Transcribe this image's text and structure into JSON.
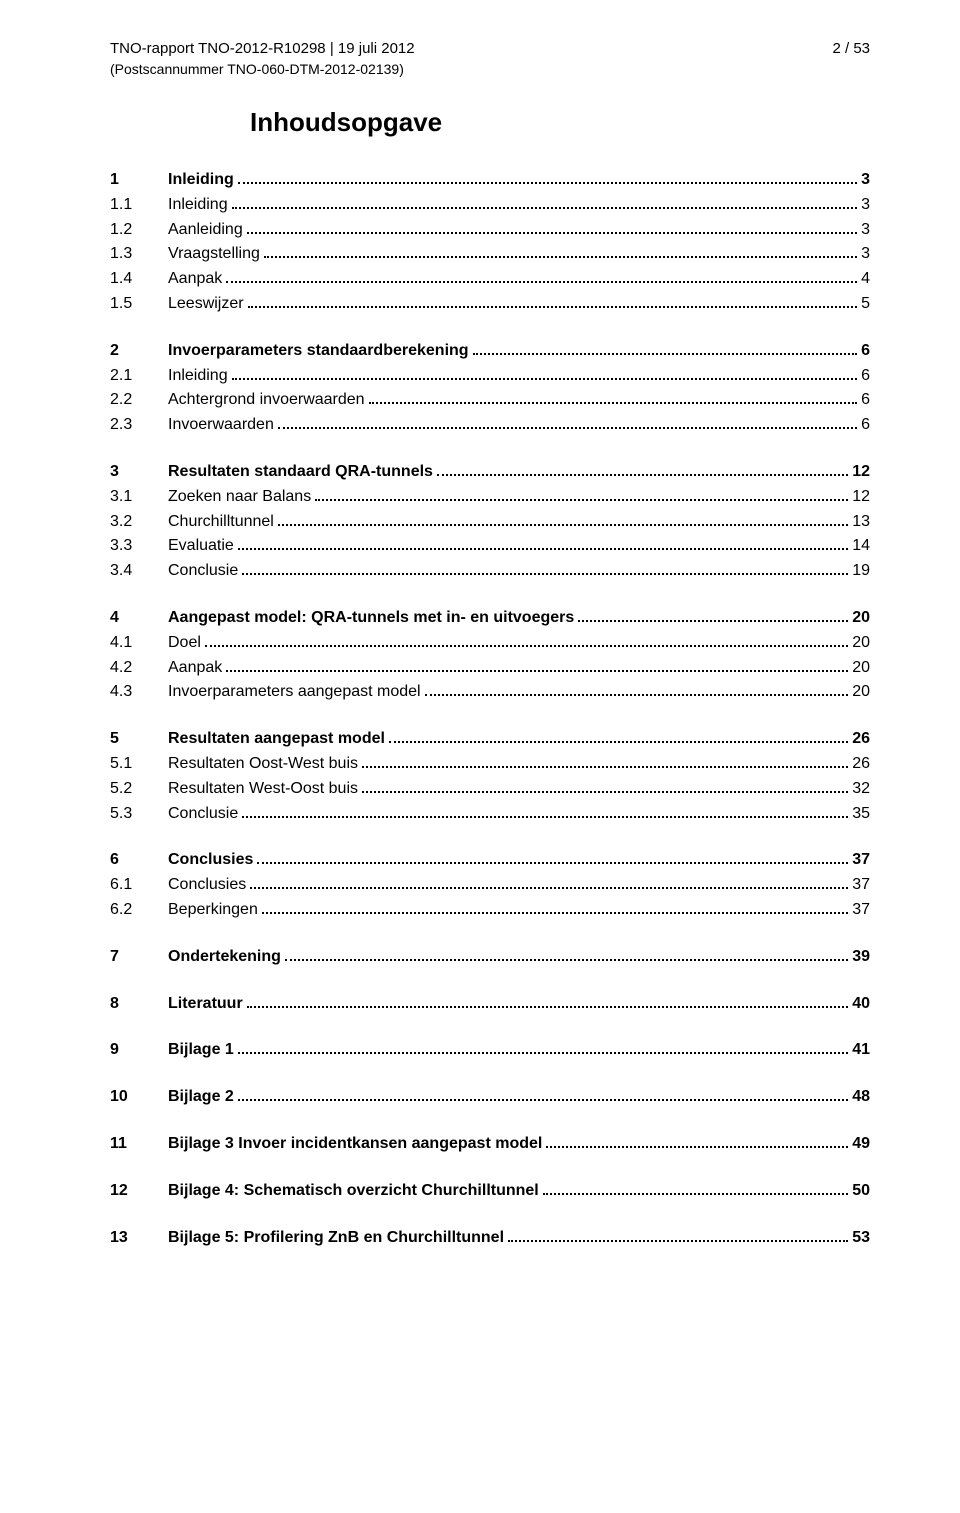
{
  "header": {
    "report_id": "TNO-rapport TNO-2012-R10298 | 19 juli 2012",
    "page_indicator": "2 / 53",
    "scan_number": "(Postscannummer TNO-060-DTM-2012-02139)"
  },
  "title": "Inhoudsopgave",
  "toc": [
    {
      "type": "section",
      "items": [
        {
          "num": "1",
          "label": "Inleiding",
          "page": "3",
          "bold": true
        },
        {
          "num": "1.1",
          "label": "Inleiding",
          "page": "3",
          "bold": false
        },
        {
          "num": "1.2",
          "label": "Aanleiding",
          "page": "3",
          "bold": false
        },
        {
          "num": "1.3",
          "label": "Vraagstelling",
          "page": "3",
          "bold": false
        },
        {
          "num": "1.4",
          "label": "Aanpak",
          "page": "4",
          "bold": false
        },
        {
          "num": "1.5",
          "label": "Leeswijzer",
          "page": "5",
          "bold": false
        }
      ]
    },
    {
      "type": "section",
      "items": [
        {
          "num": "2",
          "label": "Invoerparameters standaardberekening",
          "page": "6",
          "bold": true
        },
        {
          "num": "2.1",
          "label": "Inleiding",
          "page": "6",
          "bold": false
        },
        {
          "num": "2.2",
          "label": "Achtergrond invoerwaarden",
          "page": "6",
          "bold": false
        },
        {
          "num": "2.3",
          "label": "Invoerwaarden",
          "page": "6",
          "bold": false
        }
      ]
    },
    {
      "type": "section",
      "items": [
        {
          "num": "3",
          "label": "Resultaten standaard QRA-tunnels",
          "page": "12",
          "bold": true
        },
        {
          "num": "3.1",
          "label": "Zoeken naar Balans",
          "page": "12",
          "bold": false
        },
        {
          "num": "3.2",
          "label": "Churchilltunnel",
          "page": "13",
          "bold": false
        },
        {
          "num": "3.3",
          "label": "Evaluatie",
          "page": "14",
          "bold": false
        },
        {
          "num": "3.4",
          "label": "Conclusie",
          "page": "19",
          "bold": false
        }
      ]
    },
    {
      "type": "section",
      "items": [
        {
          "num": "4",
          "label": "Aangepast model: QRA-tunnels met in- en uitvoegers",
          "page": "20",
          "bold": true
        },
        {
          "num": "4.1",
          "label": "Doel",
          "page": "20",
          "bold": false
        },
        {
          "num": "4.2",
          "label": "Aanpak",
          "page": "20",
          "bold": false
        },
        {
          "num": "4.3",
          "label": "Invoerparameters aangepast model",
          "page": "20",
          "bold": false
        }
      ]
    },
    {
      "type": "section",
      "items": [
        {
          "num": "5",
          "label": "Resultaten aangepast model",
          "page": "26",
          "bold": true
        },
        {
          "num": "5.1",
          "label": "Resultaten Oost-West buis",
          "page": "26",
          "bold": false
        },
        {
          "num": "5.2",
          "label": "Resultaten West-Oost buis",
          "page": "32",
          "bold": false
        },
        {
          "num": "5.3",
          "label": "Conclusie",
          "page": "35",
          "bold": false
        }
      ]
    },
    {
      "type": "section",
      "items": [
        {
          "num": "6",
          "label": "Conclusies",
          "page": "37",
          "bold": true
        },
        {
          "num": "6.1",
          "label": "Conclusies",
          "page": "37",
          "bold": false
        },
        {
          "num": "6.2",
          "label": "Beperkingen",
          "page": "37",
          "bold": false
        }
      ]
    },
    {
      "type": "section",
      "items": [
        {
          "num": "7",
          "label": "Ondertekening",
          "page": "39",
          "bold": true
        }
      ]
    },
    {
      "type": "section",
      "items": [
        {
          "num": "8",
          "label": "Literatuur",
          "page": "40",
          "bold": true
        }
      ]
    },
    {
      "type": "section",
      "items": [
        {
          "num": "9",
          "label": "Bijlage 1",
          "page": "41",
          "bold": true
        }
      ]
    },
    {
      "type": "section",
      "items": [
        {
          "num": "10",
          "label": "Bijlage 2",
          "page": "48",
          "bold": true
        }
      ]
    },
    {
      "type": "section",
      "items": [
        {
          "num": "11",
          "label": "Bijlage 3 Invoer incidentkansen aangepast model",
          "page": "49",
          "bold": true
        }
      ]
    },
    {
      "type": "section",
      "items": [
        {
          "num": "12",
          "label": "Bijlage 4: Schematisch overzicht Churchilltunnel",
          "page": "50",
          "bold": true
        }
      ]
    },
    {
      "type": "section",
      "items": [
        {
          "num": "13",
          "label": "Bijlage 5: Profilering ZnB en Churchilltunnel",
          "page": "53",
          "bold": true
        }
      ]
    }
  ]
}
